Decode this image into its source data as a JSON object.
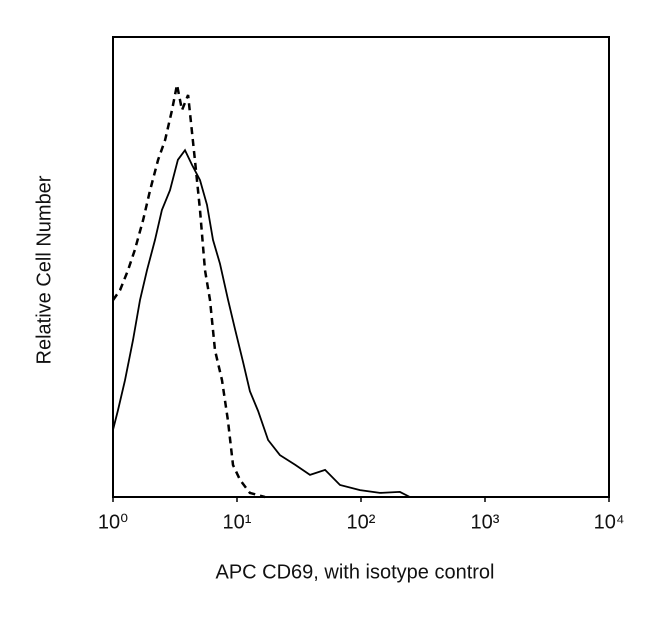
{
  "chart_data": {
    "type": "line",
    "xlabel": "APC CD69, with isotype control",
    "ylabel": "Relative Cell Number",
    "xlog": true,
    "xlim": [
      1,
      10000
    ],
    "xticks": [
      {
        "value": 1,
        "label": "10⁰"
      },
      {
        "value": 10,
        "label": "10¹"
      },
      {
        "value": 100,
        "label": "10²"
      },
      {
        "value": 1000,
        "label": "10³"
      },
      {
        "value": 10000,
        "label": "10⁴"
      }
    ],
    "ylim": [
      0,
      100
    ],
    "series": [
      {
        "color": "#000000",
        "style": "solid",
        "x": [
          1,
          1.097,
          1.25,
          1.45,
          1.65,
          1.88,
          2.18,
          2.48,
          2.88,
          3.34,
          3.81,
          4.34,
          5.03,
          5.73,
          6.4,
          7.29,
          8.45,
          9.64,
          11.2,
          12.7,
          14.8,
          17.8,
          22.2,
          29.4,
          38.8,
          51.3,
          67.7,
          98.2,
          142,
          206,
          248
        ],
        "values": [
          14.6,
          18.9,
          25.4,
          34.1,
          42.8,
          49.3,
          55.9,
          62.4,
          66.7,
          73.3,
          75.4,
          72.2,
          68.9,
          63.5,
          55.9,
          50.7,
          43.0,
          36.5,
          29.3,
          23.0,
          18.7,
          12.4,
          9.1,
          7.0,
          4.8,
          5.9,
          2.6,
          1.5,
          0.9,
          1.1,
          0
        ]
      },
      {
        "color": "#000000",
        "style": "dashed",
        "x": [
          1,
          1.14,
          1.32,
          1.5,
          1.75,
          1.99,
          2.31,
          2.63,
          2.99,
          3.28,
          3.6,
          4.03,
          4.58,
          5.03,
          5.52,
          6.06,
          6.65,
          7.57,
          8.45,
          9.29,
          10.6,
          12.7,
          16.8
        ],
        "values": [
          42.8,
          45.0,
          49.3,
          53.7,
          60.2,
          66.7,
          73.3,
          77.6,
          84.1,
          89.6,
          84.1,
          87.4,
          73.3,
          62.4,
          49.3,
          42.8,
          31.9,
          25.4,
          16.7,
          6.96,
          3.7,
          0.9,
          0
        ]
      }
    ]
  }
}
